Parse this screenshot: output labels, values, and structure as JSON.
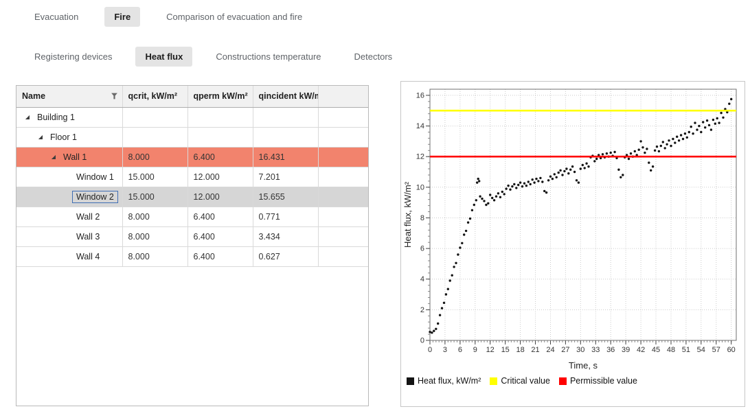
{
  "icons": {
    "expander": "◢",
    "filter": "funnel"
  },
  "colors": {
    "series": "#141414",
    "highlight_row": "#f2836d",
    "selected_row": "#d6d6d6",
    "focus_border": "#3f6db4",
    "critical": "#ffff00",
    "permissible": "#ff0000"
  },
  "tabs_primary": [
    {
      "label": "Evacuation",
      "selected": false
    },
    {
      "label": "Fire",
      "selected": true
    },
    {
      "label": "Comparison of evacuation and fire",
      "selected": false
    }
  ],
  "tabs_secondary": [
    {
      "label": "Registering devices",
      "selected": false
    },
    {
      "label": "Heat flux",
      "selected": true
    },
    {
      "label": "Constructions temperature",
      "selected": false
    },
    {
      "label": "Detectors",
      "selected": false
    }
  ],
  "table": {
    "columns": [
      "Name",
      "qcrit, kW/m²",
      "qperm kW/m²",
      "qincident kW/m²",
      ""
    ],
    "rows": [
      {
        "name": "Building 1",
        "level": 0,
        "expander": true,
        "qcrit": "",
        "qperm": "",
        "qincident": "",
        "state": ""
      },
      {
        "name": "Floor 1",
        "level": 1,
        "expander": true,
        "qcrit": "",
        "qperm": "",
        "qincident": "",
        "state": ""
      },
      {
        "name": "Wall 1",
        "level": 2,
        "expander": true,
        "qcrit": "8.000",
        "qperm": "6.400",
        "qincident": "16.431",
        "state": "highlight"
      },
      {
        "name": "Window 1",
        "level": 3,
        "expander": false,
        "qcrit": "15.000",
        "qperm": "12.000",
        "qincident": "7.201",
        "state": ""
      },
      {
        "name": "Window 2",
        "level": 3,
        "expander": false,
        "qcrit": "15.000",
        "qperm": "12.000",
        "qincident": "15.655",
        "state": "selected"
      },
      {
        "name": "Wall 2",
        "level": 3,
        "expander": false,
        "qcrit": "8.000",
        "qperm": "6.400",
        "qincident": "0.771",
        "state": ""
      },
      {
        "name": "Wall 3",
        "level": 3,
        "expander": false,
        "qcrit": "8.000",
        "qperm": "6.400",
        "qincident": "3.434",
        "state": ""
      },
      {
        "name": "Wall 4",
        "level": 3,
        "expander": false,
        "qcrit": "8.000",
        "qperm": "6.400",
        "qincident": "0.627",
        "state": ""
      }
    ]
  },
  "chart_data": {
    "type": "scatter",
    "title": "",
    "xlabel": "Time, s",
    "ylabel": "Heat flux, kW/m²",
    "series_name": "Heat flux, kW/m²",
    "xlim": [
      0,
      61
    ],
    "ylim": [
      0,
      16.4
    ],
    "x_ticks": [
      0,
      3,
      6,
      9,
      12,
      15,
      18,
      21,
      24,
      27,
      30,
      33,
      36,
      39,
      42,
      45,
      48,
      51,
      54,
      57,
      60
    ],
    "y_ticks": [
      0,
      2,
      4,
      6,
      8,
      10,
      12,
      14,
      16
    ],
    "grid": true,
    "legend_position": "bottom",
    "thresholds": [
      {
        "name": "Critical value",
        "value": 15,
        "color": "#ffff00"
      },
      {
        "name": "Permissible value",
        "value": 12,
        "color": "#ff0000"
      }
    ],
    "points": [
      [
        0.0,
        0.55
      ],
      [
        0.4,
        0.5
      ],
      [
        0.8,
        0.62
      ],
      [
        1.2,
        0.75
      ],
      [
        1.6,
        1.1
      ],
      [
        2.0,
        1.65
      ],
      [
        2.4,
        2.1
      ],
      [
        2.8,
        2.45
      ],
      [
        3.2,
        3.0
      ],
      [
        3.6,
        3.35
      ],
      [
        4.0,
        3.9
      ],
      [
        4.4,
        4.25
      ],
      [
        4.8,
        4.8
      ],
      [
        5.2,
        5.05
      ],
      [
        5.6,
        5.6
      ],
      [
        6.0,
        6.05
      ],
      [
        6.4,
        6.35
      ],
      [
        6.8,
        6.9
      ],
      [
        7.2,
        7.15
      ],
      [
        7.6,
        7.7
      ],
      [
        8.0,
        7.95
      ],
      [
        8.4,
        8.5
      ],
      [
        8.8,
        8.85
      ],
      [
        9.2,
        9.15
      ],
      [
        9.4,
        10.3
      ],
      [
        9.6,
        10.55
      ],
      [
        9.8,
        10.4
      ],
      [
        10.0,
        9.4
      ],
      [
        10.4,
        9.25
      ],
      [
        10.8,
        9.1
      ],
      [
        11.2,
        8.85
      ],
      [
        11.6,
        8.95
      ],
      [
        12.0,
        9.5
      ],
      [
        12.4,
        9.3
      ],
      [
        12.8,
        9.15
      ],
      [
        13.2,
        9.4
      ],
      [
        13.6,
        9.6
      ],
      [
        14.0,
        9.35
      ],
      [
        14.4,
        9.7
      ],
      [
        14.8,
        9.55
      ],
      [
        15.2,
        9.9
      ],
      [
        15.6,
        10.1
      ],
      [
        16.0,
        9.85
      ],
      [
        16.4,
        10.05
      ],
      [
        16.8,
        10.2
      ],
      [
        17.2,
        9.95
      ],
      [
        17.6,
        10.15
      ],
      [
        18.0,
        10.3
      ],
      [
        18.4,
        10.05
      ],
      [
        18.8,
        10.25
      ],
      [
        19.2,
        10.1
      ],
      [
        19.6,
        10.35
      ],
      [
        20.0,
        10.2
      ],
      [
        20.4,
        10.5
      ],
      [
        20.8,
        10.3
      ],
      [
        21.2,
        10.55
      ],
      [
        21.6,
        10.4
      ],
      [
        22.0,
        10.6
      ],
      [
        22.4,
        10.35
      ],
      [
        22.8,
        9.75
      ],
      [
        23.2,
        9.65
      ],
      [
        23.6,
        10.45
      ],
      [
        24.0,
        10.7
      ],
      [
        24.4,
        10.55
      ],
      [
        24.8,
        10.85
      ],
      [
        25.2,
        10.65
      ],
      [
        25.6,
        10.95
      ],
      [
        26.0,
        11.1
      ],
      [
        26.4,
        10.8
      ],
      [
        26.8,
        11.05
      ],
      [
        27.2,
        11.2
      ],
      [
        27.6,
        10.9
      ],
      [
        28.0,
        11.15
      ],
      [
        28.4,
        11.35
      ],
      [
        28.8,
        11.0
      ],
      [
        29.2,
        10.45
      ],
      [
        29.6,
        10.3
      ],
      [
        30.0,
        11.2
      ],
      [
        30.4,
        11.45
      ],
      [
        30.8,
        11.25
      ],
      [
        31.2,
        11.55
      ],
      [
        31.6,
        11.35
      ],
      [
        32.0,
        11.95
      ],
      [
        32.4,
        12.05
      ],
      [
        32.8,
        11.7
      ],
      [
        33.2,
        11.85
      ],
      [
        33.6,
        12.1
      ],
      [
        34.0,
        11.9
      ],
      [
        34.4,
        12.15
      ],
      [
        34.8,
        11.95
      ],
      [
        35.2,
        12.2
      ],
      [
        35.6,
        12.0
      ],
      [
        36.0,
        12.25
      ],
      [
        36.4,
        12.05
      ],
      [
        36.8,
        12.3
      ],
      [
        37.2,
        11.9
      ],
      [
        37.6,
        11.15
      ],
      [
        38.0,
        10.65
      ],
      [
        38.4,
        10.8
      ],
      [
        38.8,
        11.95
      ],
      [
        39.2,
        12.1
      ],
      [
        39.6,
        11.85
      ],
      [
        40.0,
        12.2
      ],
      [
        40.4,
        12.0
      ],
      [
        40.8,
        12.35
      ],
      [
        41.2,
        12.1
      ],
      [
        41.6,
        12.45
      ],
      [
        42.0,
        13.0
      ],
      [
        42.4,
        12.6
      ],
      [
        42.8,
        12.25
      ],
      [
        43.2,
        12.5
      ],
      [
        43.6,
        11.6
      ],
      [
        44.0,
        11.1
      ],
      [
        44.4,
        11.35
      ],
      [
        44.8,
        12.4
      ],
      [
        45.2,
        12.65
      ],
      [
        45.6,
        12.35
      ],
      [
        46.0,
        12.7
      ],
      [
        46.4,
        12.95
      ],
      [
        46.8,
        12.55
      ],
      [
        47.2,
        12.8
      ],
      [
        47.6,
        13.05
      ],
      [
        48.0,
        12.7
      ],
      [
        48.4,
        13.15
      ],
      [
        48.8,
        12.9
      ],
      [
        49.2,
        13.3
      ],
      [
        49.6,
        13.05
      ],
      [
        50.0,
        13.4
      ],
      [
        50.4,
        13.15
      ],
      [
        50.8,
        13.5
      ],
      [
        51.2,
        13.25
      ],
      [
        51.6,
        13.6
      ],
      [
        52.0,
        13.95
      ],
      [
        52.4,
        13.5
      ],
      [
        52.8,
        14.2
      ],
      [
        53.2,
        13.75
      ],
      [
        53.6,
        14.0
      ],
      [
        54.0,
        13.6
      ],
      [
        54.4,
        14.25
      ],
      [
        54.8,
        13.9
      ],
      [
        55.2,
        14.35
      ],
      [
        55.6,
        14.05
      ],
      [
        56.0,
        13.75
      ],
      [
        56.4,
        14.4
      ],
      [
        56.8,
        14.15
      ],
      [
        57.2,
        14.5
      ],
      [
        57.6,
        14.2
      ],
      [
        58.0,
        14.85
      ],
      [
        58.4,
        14.55
      ],
      [
        58.8,
        15.1
      ],
      [
        59.2,
        14.9
      ],
      [
        59.6,
        15.45
      ],
      [
        60.0,
        15.75
      ]
    ]
  }
}
